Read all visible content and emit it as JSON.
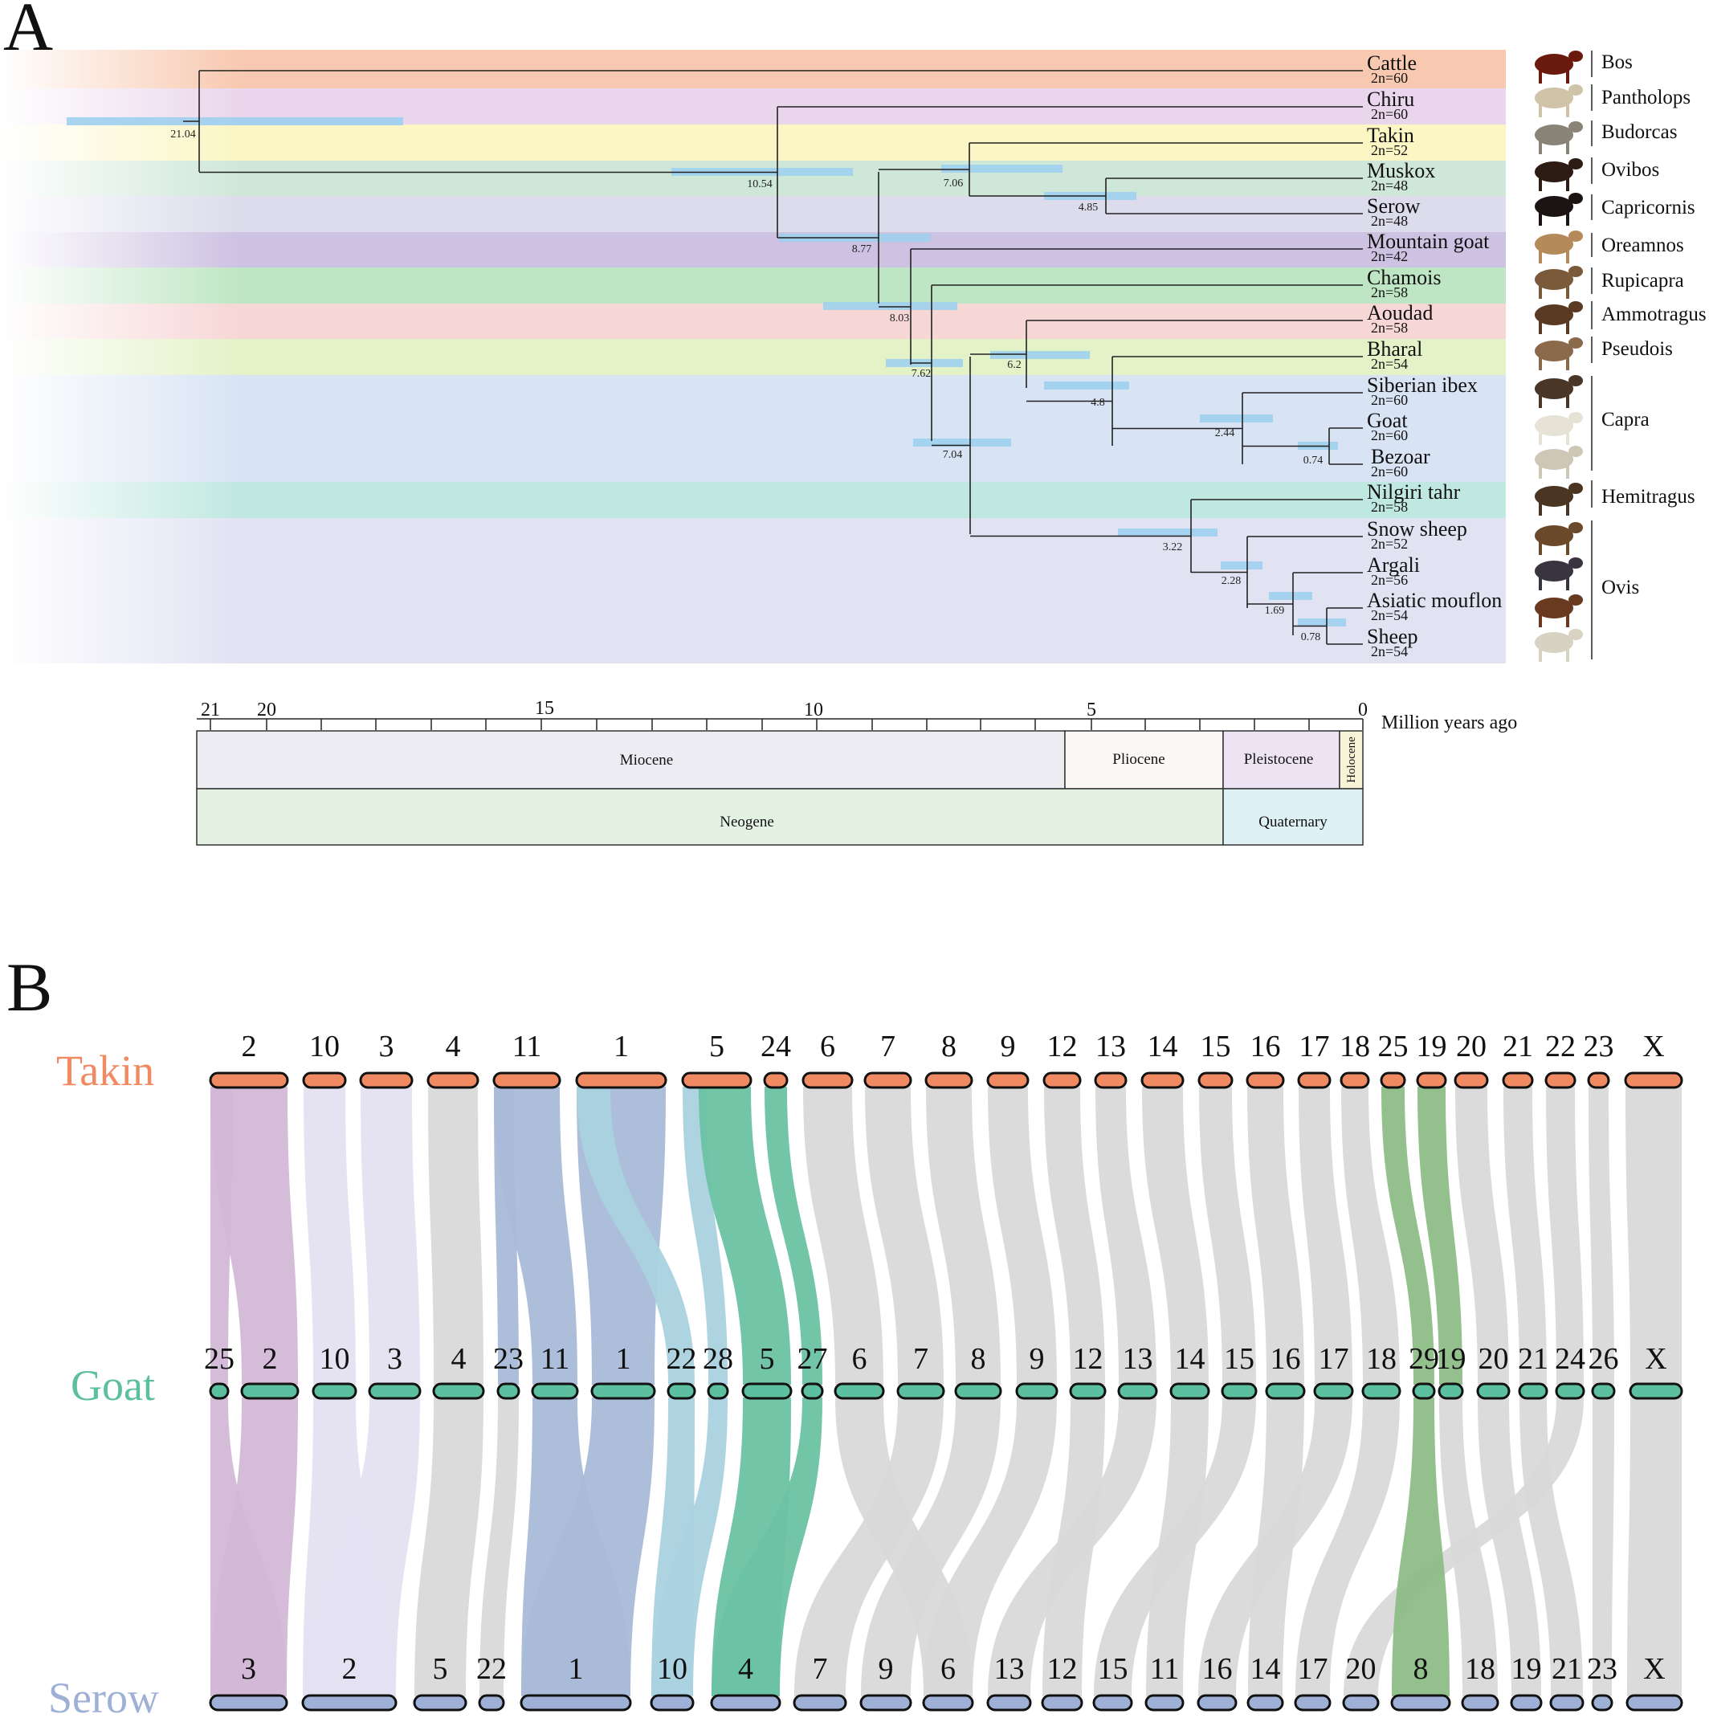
{
  "panel_a": {
    "letter": "A",
    "taxa": [
      {
        "name": "Cattle",
        "karyotype": "2n=60"
      },
      {
        "name": "Chiru",
        "karyotype": "2n=60"
      },
      {
        "name": "Takin",
        "karyotype": "2n=52"
      },
      {
        "name": "Muskox",
        "karyotype": "2n=48"
      },
      {
        "name": "Serow",
        "karyotype": "2n=48",
        "highlight": "#e0202a"
      },
      {
        "name": "Mountain goat",
        "karyotype": "2n=42"
      },
      {
        "name": "Chamois",
        "karyotype": "2n=58"
      },
      {
        "name": "Aoudad",
        "karyotype": "2n=58"
      },
      {
        "name": "Bharal",
        "karyotype": "2n=54"
      },
      {
        "name": "Siberian ibex",
        "karyotype": "2n=60"
      },
      {
        "name": "Goat",
        "karyotype": "2n=60"
      },
      {
        "name": "Bezoar",
        "karyotype": "2n=60"
      },
      {
        "name": "Nilgiri tahr",
        "karyotype": "2n=58"
      },
      {
        "name": "Snow sheep",
        "karyotype": "2n=52"
      },
      {
        "name": "Argali",
        "karyotype": "2n=56"
      },
      {
        "name": "Asiatic mouflon",
        "karyotype": "2n=54"
      },
      {
        "name": "Sheep",
        "karyotype": "2n=54"
      }
    ],
    "node_ages": [
      "21.04",
      "10.54",
      "8.77",
      "8.03",
      "7.62",
      "7.06",
      "4.85",
      "7.04",
      "6.2",
      "4.8",
      "2.44",
      "0.74",
      "3.22",
      "2.28",
      "1.69",
      "0.78"
    ],
    "genera": [
      "Bos",
      "Pantholops",
      "Budorcas",
      "Ovibos",
      "Capricornis",
      "Oreamnos",
      "Rupicapra",
      "Ammotragus",
      "Pseudois",
      "Capra",
      "Hemitragus",
      "Ovis"
    ],
    "time_axis": {
      "ticks": [
        "21",
        "20",
        "15",
        "10",
        "5",
        "0"
      ],
      "unit_label": "Million years ago"
    },
    "epochs": [
      "Miocene",
      "Pliocene",
      "Pleistocene",
      "Holocene"
    ],
    "periods": [
      "Neogene",
      "Quaternary"
    ],
    "colors": {
      "ci_bar": "#9fd0ee",
      "band_cattle": "#f8c9b0",
      "band_chiru": "#ead6ec",
      "band_takin": "#fbf6c4",
      "band_muskox": "#cfe7d9",
      "band_serow": "#dcdcec",
      "band_mgoat": "#cdc2e2",
      "band_chamois": "#bfe6c4",
      "band_aoudad": "#f7d6d6",
      "band_bharal": "#e4f2c8",
      "band_capra": "#d8e4f4",
      "band_tahr": "#bfe8e0",
      "band_ovis": "#e1e3f3"
    }
  },
  "panel_b": {
    "letter": "B",
    "species": [
      {
        "name": "Takin",
        "color": "#f08a62"
      },
      {
        "name": "Goat",
        "color": "#5cbfa0"
      },
      {
        "name": "Serow",
        "color": "#9fb0d6"
      }
    ],
    "takin_chromosomes": [
      "2",
      "10",
      "3",
      "4",
      "11",
      "1",
      "5",
      "24",
      "6",
      "7",
      "8",
      "9",
      "12",
      "13",
      "14",
      "15",
      "16",
      "17",
      "18",
      "25",
      "19",
      "20",
      "21",
      "22",
      "23",
      "X"
    ],
    "goat_chromosomes": [
      "25",
      "2",
      "10",
      "3",
      "4",
      "23",
      "11",
      "1",
      "22",
      "28",
      "5",
      "27",
      "6",
      "7",
      "8",
      "9",
      "12",
      "13",
      "14",
      "15",
      "16",
      "17",
      "18",
      "29",
      "19",
      "20",
      "21",
      "24",
      "26",
      "X"
    ],
    "serow_chromosomes": [
      "3",
      "2",
      "5",
      "22",
      "1",
      "10",
      "4",
      "7",
      "9",
      "6",
      "13",
      "12",
      "15",
      "11",
      "16",
      "14",
      "17",
      "20",
      "8",
      "18",
      "19",
      "21",
      "23",
      "X"
    ],
    "colors": {
      "purple": "#d3b8d7",
      "lavender": "#e4e2f1",
      "gray": "#d9d9d9",
      "blue": "#a9bad8",
      "lightblue": "#aad2e0",
      "green": "#6cc2a3",
      "olive": "#8dbd86"
    }
  }
}
